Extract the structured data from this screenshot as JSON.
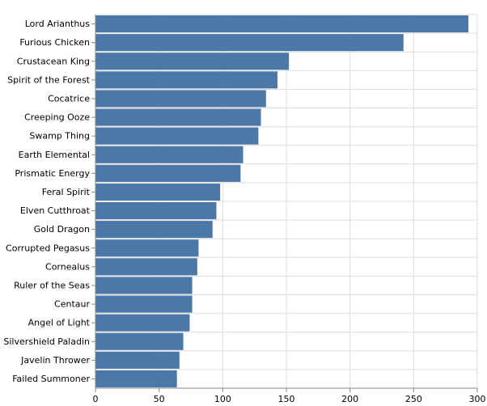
{
  "chart_data": {
    "type": "bar",
    "orientation": "horizontal",
    "categories": [
      "Lord Arianthus",
      "Furious Chicken",
      "Crustacean King",
      "Spirit of the Forest",
      "Cocatrice",
      "Creeping Ooze",
      "Swamp Thing",
      "Earth Elemental",
      "Prismatic Energy",
      "Feral Spirit",
      "Elven Cutthroat",
      "Gold Dragon",
      "Corrupted Pegasus",
      "Cornealus",
      "Ruler of the Seas",
      "Centaur",
      "Angel of Light",
      "Silvershield Paladin",
      "Javelin Thrower",
      "Failed Summoner"
    ],
    "values": [
      293,
      242,
      152,
      143,
      134,
      130,
      128,
      116,
      114,
      98,
      95,
      92,
      81,
      80,
      76,
      76,
      74,
      69,
      66,
      64
    ],
    "xlim": [
      0,
      300
    ],
    "x_ticks": [
      0,
      50,
      100,
      150,
      200,
      250,
      300
    ],
    "title": "",
    "xlabel": "",
    "ylabel": "",
    "grid": true,
    "legend": "none",
    "bar_color": "#4c78a8",
    "grid_color": "#dddddd",
    "axis_color": "#888888"
  }
}
